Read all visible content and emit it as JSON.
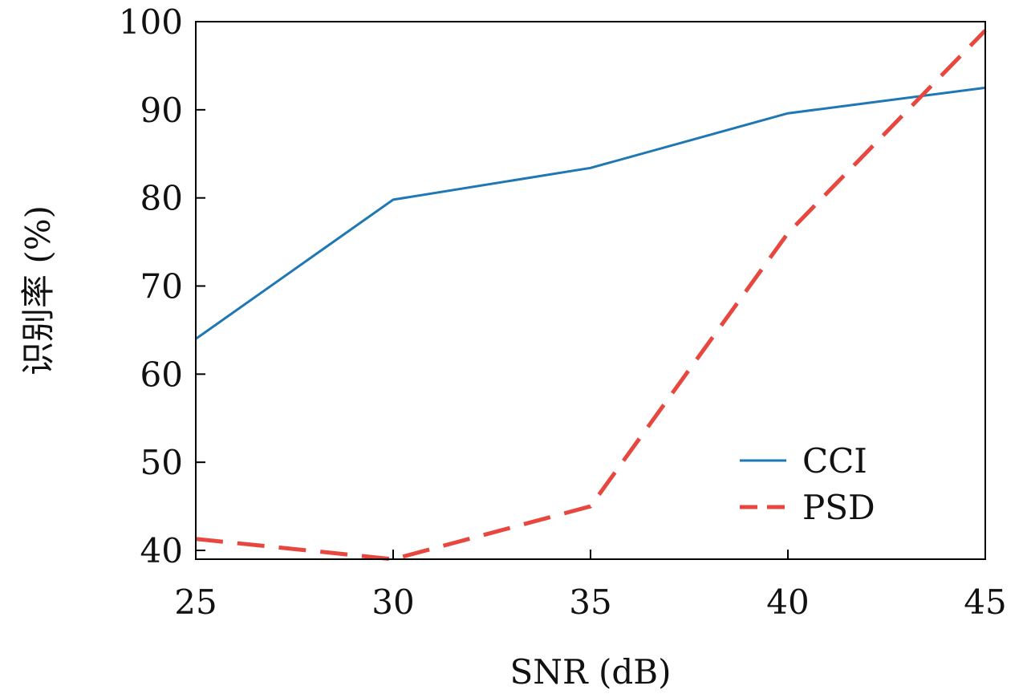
{
  "chart_data": {
    "type": "line",
    "title": "",
    "xlabel": "SNR (dB)",
    "ylabel": "识别率 (%)",
    "x": [
      25,
      30,
      35,
      40,
      45
    ],
    "xlim": [
      25,
      45
    ],
    "ylim": [
      39,
      100
    ],
    "xticks": [
      25,
      30,
      35,
      40,
      45
    ],
    "yticks": [
      40,
      50,
      60,
      70,
      80,
      90,
      100
    ],
    "grid": false,
    "legend_position": "bottom-right",
    "series": [
      {
        "name": "CCI",
        "values": [
          64.0,
          79.8,
          83.4,
          89.6,
          92.5
        ],
        "color": "#1f77b4",
        "style": "solid"
      },
      {
        "name": "PSD",
        "values": [
          41.3,
          39.0,
          45.0,
          76.0,
          99.0
        ],
        "color": "#e8473f",
        "style": "dashed"
      }
    ]
  }
}
